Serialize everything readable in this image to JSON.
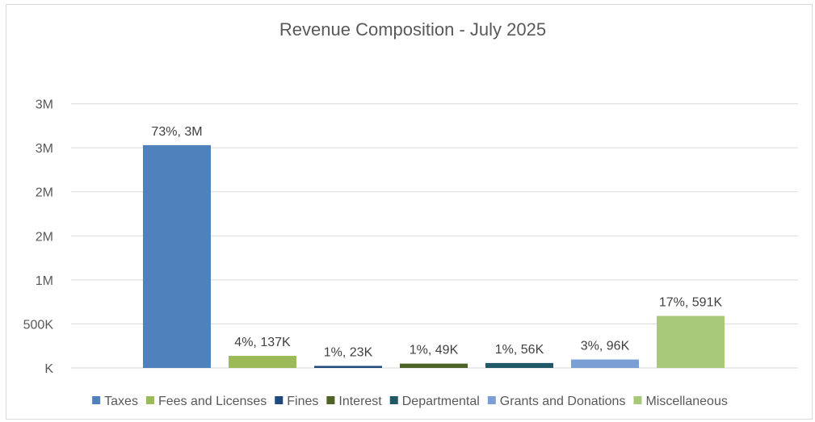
{
  "chart_data": {
    "type": "bar",
    "title": "Revenue Composition - July 2025",
    "xlabel": "",
    "ylabel": "",
    "ylim": [
      0,
      3500000
    ],
    "yticks": [
      {
        "value": 0,
        "label": "K"
      },
      {
        "value": 500000,
        "label": "500K"
      },
      {
        "value": 1000000,
        "label": "1M"
      },
      {
        "value": 1500000,
        "label": "2M"
      },
      {
        "value": 2000000,
        "label": "2M"
      },
      {
        "value": 2500000,
        "label": "3M"
      },
      {
        "value": 3000000,
        "label": "3M"
      }
    ],
    "grid": true,
    "legend": "bottom",
    "categories": [
      "Taxes",
      "Fees and Licenses",
      "Fines",
      "Interest",
      "Departmental",
      "Grants and Donations",
      "Miscellaneous"
    ],
    "values": [
      2530000,
      137000,
      23000,
      49000,
      56000,
      96000,
      591000
    ],
    "data_labels": [
      "73%, 3M",
      "4%, 137K",
      "1%, 23K",
      "1%, 49K",
      "1%, 56K",
      "3%, 96K",
      "17%, 591K"
    ],
    "colors": [
      "#4f81bd",
      "#9bbb59",
      "#1f497d",
      "#4f6228",
      "#215968",
      "#7b9fd4",
      "#a9c97a"
    ]
  }
}
